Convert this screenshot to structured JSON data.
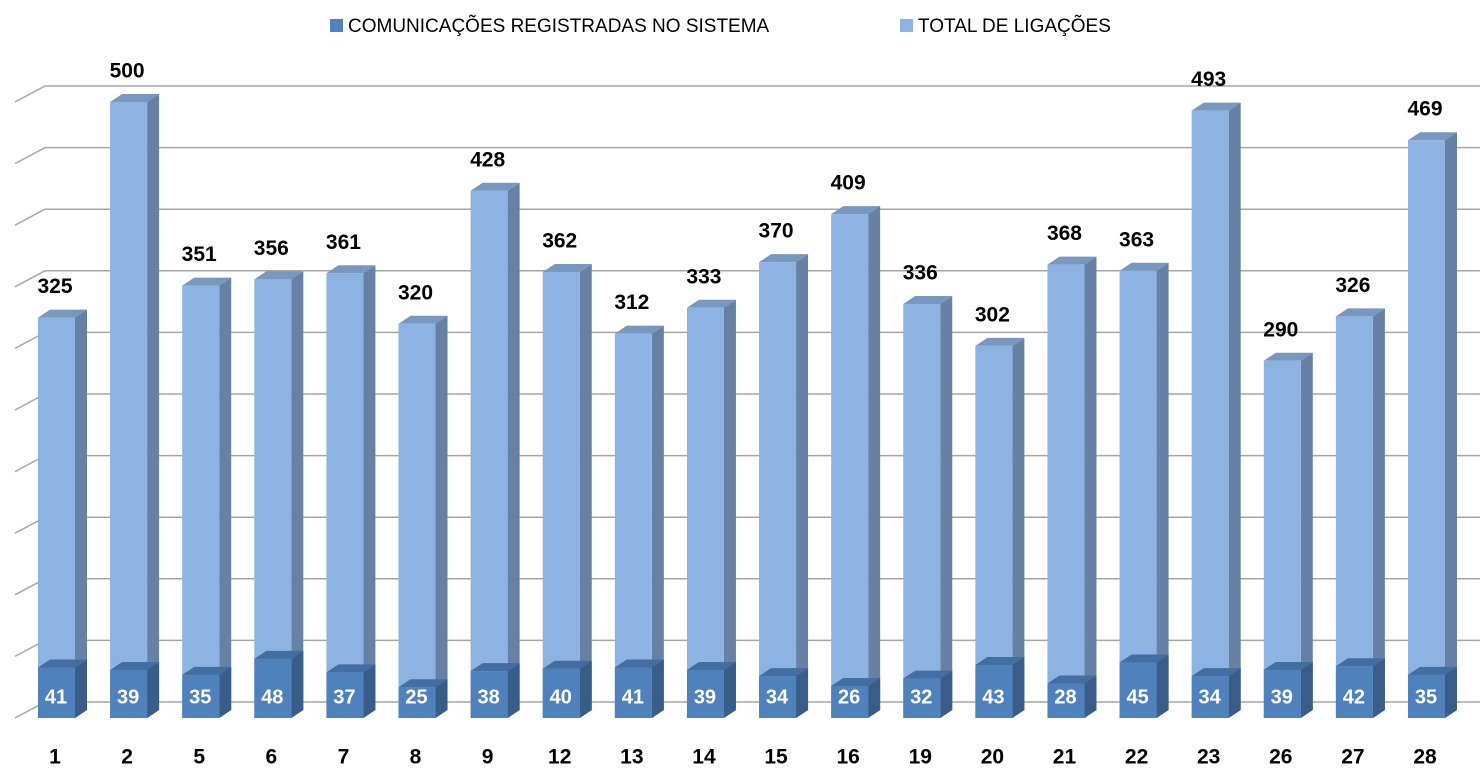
{
  "chart_data": {
    "type": "bar",
    "categories": [
      "1",
      "2",
      "5",
      "6",
      "7",
      "8",
      "9",
      "12",
      "13",
      "14",
      "15",
      "16",
      "19",
      "20",
      "21",
      "22",
      "23",
      "26",
      "27",
      "28"
    ],
    "series": [
      {
        "name": "COMUNICAÇÕES REGISTRADAS NO SISTEMA",
        "color": "#4f81bd",
        "values": [
          41,
          39,
          35,
          48,
          37,
          25,
          38,
          40,
          41,
          39,
          34,
          26,
          32,
          43,
          28,
          45,
          34,
          39,
          42,
          35
        ]
      },
      {
        "name": "TOTAL DE LIGAÇÕES",
        "color": "#8db3e2",
        "values": [
          325,
          500,
          351,
          356,
          361,
          320,
          428,
          362,
          312,
          333,
          370,
          409,
          336,
          302,
          368,
          363,
          493,
          290,
          326,
          469
        ]
      }
    ],
    "ylim": [
      0,
      500
    ],
    "yticks": [
      0,
      50,
      100,
      150,
      200,
      250,
      300,
      350,
      400,
      450,
      500
    ],
    "grid": true,
    "legend": "top"
  }
}
